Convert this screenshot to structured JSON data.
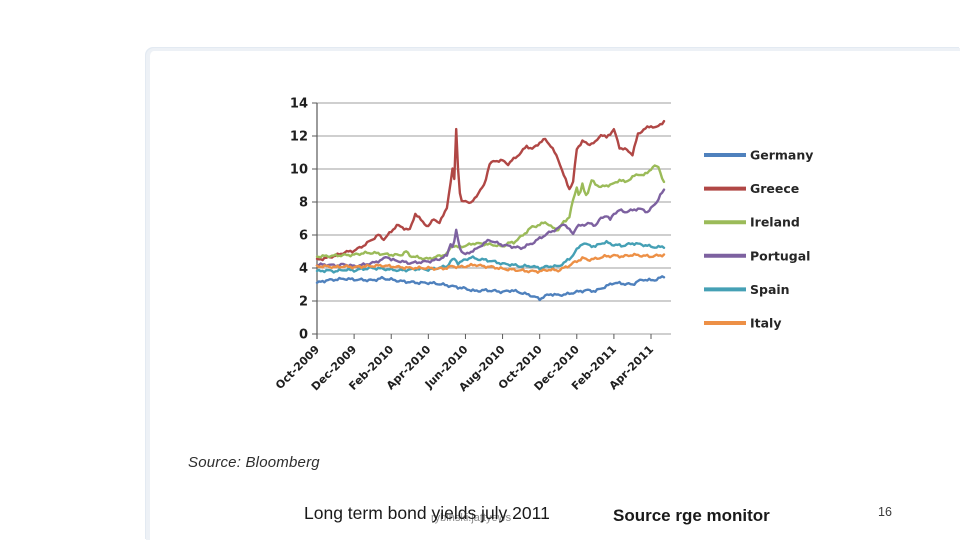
{
  "slide": {
    "source_note": "Source: Bloomberg",
    "caption_title": "Long term bond yields july 2011",
    "watermark": "rybinski.jattyews",
    "caption_source": "Source rge monitor",
    "page_number": "16"
  },
  "chart_data": {
    "type": "line",
    "title": "",
    "xlabel": "",
    "ylabel": "",
    "ylim": [
      0,
      14
    ],
    "ytick_step": 2,
    "grid": true,
    "legend_position": "right",
    "x_axis_note": "x in months since Oct-2009, ticks every 2 months",
    "xtick_months": [
      0,
      2,
      4,
      6,
      8,
      10,
      12,
      14,
      16,
      18
    ],
    "xticklabels": [
      "Oct-2009",
      "Dec-2009",
      "Feb-2010",
      "Apr-2010",
      "Jun-2010",
      "Aug-2010",
      "Oct-2010",
      "Dec-2010",
      "Feb-2011",
      "Apr-2011"
    ],
    "x_max": 18.7,
    "axis_color": "#595959",
    "grid_color": "#7f7f7f",
    "series": [
      {
        "name": "Germany",
        "color": "#4F81BD",
        "points": [
          [
            0,
            3.1
          ],
          [
            0.5,
            3.25
          ],
          [
            1,
            3.3
          ],
          [
            1.5,
            3.35
          ],
          [
            2,
            3.3
          ],
          [
            2.5,
            3.28
          ],
          [
            3,
            3.25
          ],
          [
            3.5,
            3.38
          ],
          [
            4,
            3.3
          ],
          [
            4.5,
            3.2
          ],
          [
            5,
            3.15
          ],
          [
            5.5,
            3.1
          ],
          [
            6,
            3.1
          ],
          [
            6.5,
            3.05
          ],
          [
            7,
            2.95
          ],
          [
            7.5,
            2.85
          ],
          [
            8,
            2.75
          ],
          [
            8.5,
            2.6
          ],
          [
            9,
            2.65
          ],
          [
            9.5,
            2.62
          ],
          [
            10,
            2.55
          ],
          [
            10.5,
            2.65
          ],
          [
            11,
            2.5
          ],
          [
            11.5,
            2.35
          ],
          [
            12,
            2.12
          ],
          [
            12.3,
            2.3
          ],
          [
            12.6,
            2.42
          ],
          [
            13,
            2.35
          ],
          [
            13.5,
            2.42
          ],
          [
            14,
            2.55
          ],
          [
            14.5,
            2.65
          ],
          [
            15,
            2.6
          ],
          [
            15.5,
            2.85
          ],
          [
            16,
            3.1
          ],
          [
            16.5,
            3.05
          ],
          [
            17,
            3.0
          ],
          [
            17.3,
            3.2
          ],
          [
            17.6,
            3.3
          ],
          [
            18,
            3.25
          ],
          [
            18.3,
            3.3
          ],
          [
            18.7,
            3.5
          ]
        ]
      },
      {
        "name": "Greece",
        "color": "#B04745",
        "points": [
          [
            0,
            4.5
          ],
          [
            0.5,
            4.6
          ],
          [
            1,
            4.75
          ],
          [
            1.5,
            4.95
          ],
          [
            2,
            5.05
          ],
          [
            2.5,
            5.35
          ],
          [
            3,
            5.75
          ],
          [
            3.3,
            6.0
          ],
          [
            3.6,
            5.75
          ],
          [
            4,
            6.2
          ],
          [
            4.3,
            6.6
          ],
          [
            4.6,
            6.45
          ],
          [
            5,
            6.3
          ],
          [
            5.3,
            7.3
          ],
          [
            5.6,
            6.9
          ],
          [
            6,
            6.5
          ],
          [
            6.3,
            7.0
          ],
          [
            6.6,
            6.7
          ],
          [
            7,
            7.7
          ],
          [
            7.15,
            8.7
          ],
          [
            7.3,
            10.0
          ],
          [
            7.4,
            9.4
          ],
          [
            7.5,
            12.5
          ],
          [
            7.65,
            8.8
          ],
          [
            7.8,
            8.0
          ],
          [
            8,
            8.1
          ],
          [
            8.3,
            7.9
          ],
          [
            8.6,
            8.4
          ],
          [
            9,
            9.0
          ],
          [
            9.3,
            10.3
          ],
          [
            9.6,
            10.5
          ],
          [
            10,
            10.5
          ],
          [
            10.3,
            10.3
          ],
          [
            10.6,
            10.6
          ],
          [
            11,
            11.0
          ],
          [
            11.3,
            11.4
          ],
          [
            11.6,
            11.2
          ],
          [
            12,
            11.6
          ],
          [
            12.3,
            11.8
          ],
          [
            12.6,
            11.4
          ],
          [
            13,
            10.6
          ],
          [
            13.3,
            9.6
          ],
          [
            13.6,
            8.8
          ],
          [
            13.8,
            9.2
          ],
          [
            14,
            11.2
          ],
          [
            14.3,
            11.7
          ],
          [
            14.6,
            11.5
          ],
          [
            15,
            11.6
          ],
          [
            15.3,
            12.1
          ],
          [
            15.6,
            11.9
          ],
          [
            16,
            12.4
          ],
          [
            16.3,
            11.3
          ],
          [
            16.6,
            11.2
          ],
          [
            17,
            10.9
          ],
          [
            17.3,
            12.1
          ],
          [
            17.6,
            12.4
          ],
          [
            18,
            12.6
          ],
          [
            18.3,
            12.5
          ],
          [
            18.7,
            12.9
          ]
        ]
      },
      {
        "name": "Ireland",
        "color": "#9BBB59",
        "points": [
          [
            0,
            4.7
          ],
          [
            0.5,
            4.72
          ],
          [
            1,
            4.75
          ],
          [
            1.5,
            4.78
          ],
          [
            2,
            4.8
          ],
          [
            2.5,
            4.9
          ],
          [
            3,
            4.92
          ],
          [
            3.5,
            4.85
          ],
          [
            4,
            4.8
          ],
          [
            4.5,
            4.78
          ],
          [
            4.8,
            5.0
          ],
          [
            5,
            4.75
          ],
          [
            5.5,
            4.62
          ],
          [
            6,
            4.55
          ],
          [
            6.5,
            4.7
          ],
          [
            7,
            4.85
          ],
          [
            7.3,
            5.4
          ],
          [
            7.6,
            5.25
          ],
          [
            8,
            5.35
          ],
          [
            8.5,
            5.5
          ],
          [
            9,
            5.45
          ],
          [
            9.5,
            5.4
          ],
          [
            10,
            5.3
          ],
          [
            10.3,
            5.5
          ],
          [
            10.6,
            5.55
          ],
          [
            11,
            5.9
          ],
          [
            11.3,
            6.2
          ],
          [
            11.6,
            6.5
          ],
          [
            12,
            6.6
          ],
          [
            12.3,
            6.8
          ],
          [
            12.6,
            6.5
          ],
          [
            13,
            6.3
          ],
          [
            13.3,
            6.8
          ],
          [
            13.6,
            7.1
          ],
          [
            13.8,
            8.1
          ],
          [
            14,
            8.9
          ],
          [
            14.15,
            8.3
          ],
          [
            14.3,
            9.1
          ],
          [
            14.45,
            8.4
          ],
          [
            14.6,
            8.6
          ],
          [
            14.8,
            9.3
          ],
          [
            15,
            9.1
          ],
          [
            15.3,
            8.9
          ],
          [
            15.6,
            9.0
          ],
          [
            16,
            9.1
          ],
          [
            16.3,
            9.35
          ],
          [
            16.6,
            9.2
          ],
          [
            17,
            9.5
          ],
          [
            17.3,
            9.7
          ],
          [
            17.6,
            9.6
          ],
          [
            18,
            10.0
          ],
          [
            18.25,
            10.2
          ],
          [
            18.45,
            10.1
          ],
          [
            18.6,
            9.4
          ],
          [
            18.7,
            9.2
          ]
        ]
      },
      {
        "name": "Portugal",
        "color": "#7D61A0",
        "points": [
          [
            0,
            4.2
          ],
          [
            0.5,
            4.2
          ],
          [
            1,
            4.15
          ],
          [
            1.5,
            4.22
          ],
          [
            2,
            4.1
          ],
          [
            2.5,
            4.2
          ],
          [
            3,
            4.3
          ],
          [
            3.5,
            4.5
          ],
          [
            3.8,
            4.7
          ],
          [
            4,
            4.5
          ],
          [
            4.5,
            4.4
          ],
          [
            5,
            4.3
          ],
          [
            5.5,
            4.35
          ],
          [
            6,
            4.4
          ],
          [
            6.5,
            4.5
          ],
          [
            7,
            4.75
          ],
          [
            7.2,
            5.5
          ],
          [
            7.35,
            5.2
          ],
          [
            7.5,
            6.3
          ],
          [
            7.65,
            5.4
          ],
          [
            7.8,
            5.0
          ],
          [
            8,
            4.8
          ],
          [
            8.3,
            5.0
          ],
          [
            8.6,
            5.15
          ],
          [
            9,
            5.5
          ],
          [
            9.3,
            5.7
          ],
          [
            9.6,
            5.55
          ],
          [
            10,
            5.4
          ],
          [
            10.5,
            5.3
          ],
          [
            11,
            5.2
          ],
          [
            11.3,
            5.35
          ],
          [
            11.6,
            5.5
          ],
          [
            12,
            5.8
          ],
          [
            12.3,
            6.0
          ],
          [
            12.6,
            6.2
          ],
          [
            13,
            6.4
          ],
          [
            13.3,
            6.7
          ],
          [
            13.6,
            6.3
          ],
          [
            13.8,
            6.1
          ],
          [
            14,
            6.5
          ],
          [
            14.3,
            6.6
          ],
          [
            14.6,
            6.7
          ],
          [
            15,
            6.6
          ],
          [
            15.3,
            7.0
          ],
          [
            15.6,
            7.2
          ],
          [
            15.8,
            6.9
          ],
          [
            16,
            7.3
          ],
          [
            16.3,
            7.5
          ],
          [
            16.6,
            7.4
          ],
          [
            17,
            7.5
          ],
          [
            17.3,
            7.6
          ],
          [
            17.6,
            7.5
          ],
          [
            17.8,
            7.4
          ],
          [
            18,
            7.6
          ],
          [
            18.3,
            8.0
          ],
          [
            18.5,
            8.4
          ],
          [
            18.7,
            8.7
          ]
        ]
      },
      {
        "name": "Spain",
        "color": "#45A0B5",
        "points": [
          [
            0,
            3.8
          ],
          [
            0.5,
            3.85
          ],
          [
            1,
            3.8
          ],
          [
            1.5,
            3.9
          ],
          [
            2,
            3.85
          ],
          [
            2.5,
            3.95
          ],
          [
            3,
            4.0
          ],
          [
            3.5,
            3.95
          ],
          [
            4,
            3.9
          ],
          [
            4.5,
            3.85
          ],
          [
            5,
            3.9
          ],
          [
            5.5,
            3.95
          ],
          [
            6,
            3.9
          ],
          [
            6.5,
            4.0
          ],
          [
            7,
            4.1
          ],
          [
            7.2,
            4.4
          ],
          [
            7.4,
            4.55
          ],
          [
            7.6,
            4.3
          ],
          [
            8,
            4.5
          ],
          [
            8.3,
            4.65
          ],
          [
            8.6,
            4.55
          ],
          [
            9,
            4.5
          ],
          [
            9.5,
            4.4
          ],
          [
            10,
            4.25
          ],
          [
            10.5,
            4.2
          ],
          [
            11,
            4.1
          ],
          [
            11.5,
            4.12
          ],
          [
            12,
            4.0
          ],
          [
            12.5,
            4.1
          ],
          [
            13,
            4.1
          ],
          [
            13.3,
            4.3
          ],
          [
            13.6,
            4.55
          ],
          [
            13.8,
            4.8
          ],
          [
            14,
            5.1
          ],
          [
            14.3,
            5.5
          ],
          [
            14.6,
            5.4
          ],
          [
            15,
            5.3
          ],
          [
            15.3,
            5.5
          ],
          [
            15.6,
            5.55
          ],
          [
            16,
            5.4
          ],
          [
            16.5,
            5.35
          ],
          [
            17,
            5.5
          ],
          [
            17.3,
            5.45
          ],
          [
            17.6,
            5.4
          ],
          [
            18,
            5.3
          ],
          [
            18.35,
            5.25
          ],
          [
            18.7,
            5.3
          ]
        ]
      },
      {
        "name": "Italy",
        "color": "#ED9046",
        "points": [
          [
            0,
            4.1
          ],
          [
            0.5,
            4.1
          ],
          [
            1,
            4.05
          ],
          [
            1.5,
            4.1
          ],
          [
            2,
            4.05
          ],
          [
            2.5,
            4.1
          ],
          [
            3,
            4.12
          ],
          [
            3.5,
            4.15
          ],
          [
            4,
            4.1
          ],
          [
            4.5,
            4.05
          ],
          [
            5,
            4.0
          ],
          [
            5.5,
            4.0
          ],
          [
            6,
            4.0
          ],
          [
            6.5,
            3.95
          ],
          [
            7,
            4.0
          ],
          [
            7.3,
            4.12
          ],
          [
            7.6,
            4.05
          ],
          [
            8,
            4.1
          ],
          [
            8.5,
            4.2
          ],
          [
            9,
            4.1
          ],
          [
            9.5,
            4.05
          ],
          [
            10,
            3.95
          ],
          [
            10.5,
            3.9
          ],
          [
            11,
            3.85
          ],
          [
            11.5,
            3.8
          ],
          [
            12,
            3.8
          ],
          [
            12.5,
            3.9
          ],
          [
            13,
            3.85
          ],
          [
            13.3,
            4.0
          ],
          [
            13.6,
            4.15
          ],
          [
            13.8,
            4.3
          ],
          [
            14,
            4.4
          ],
          [
            14.3,
            4.6
          ],
          [
            14.6,
            4.5
          ],
          [
            15,
            4.55
          ],
          [
            15.5,
            4.7
          ],
          [
            16,
            4.75
          ],
          [
            16.5,
            4.7
          ],
          [
            17,
            4.8
          ],
          [
            17.5,
            4.75
          ],
          [
            18,
            4.7
          ],
          [
            18.35,
            4.75
          ],
          [
            18.7,
            4.8
          ]
        ]
      }
    ]
  }
}
